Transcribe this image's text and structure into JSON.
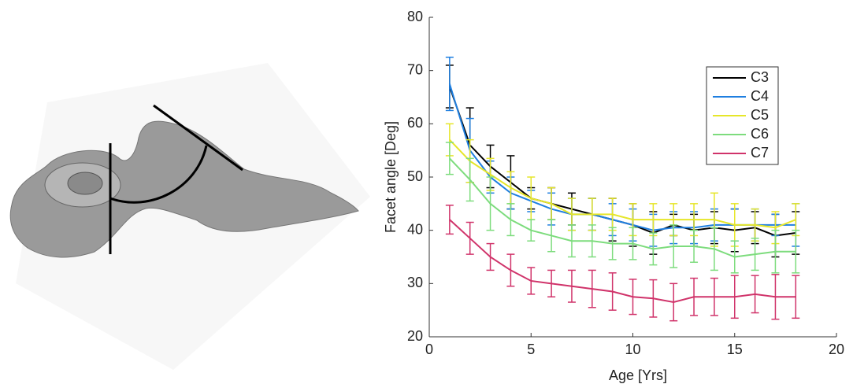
{
  "chart_data": {
    "type": "line",
    "x": [
      1,
      2,
      3,
      4,
      5,
      6,
      7,
      8,
      9,
      10,
      11,
      12,
      13,
      14,
      15,
      16,
      17,
      18
    ],
    "xlabel": "Age [Yrs]",
    "ylabel": "Facet angle [Deg]",
    "xlim": [
      0,
      20
    ],
    "xticks": [
      0,
      5,
      10,
      15,
      20
    ],
    "ylim": [
      20,
      80
    ],
    "yticks": [
      20,
      30,
      40,
      50,
      60,
      70,
      80
    ],
    "legend": "upper right",
    "series": [
      {
        "name": "C3",
        "color": "#000000",
        "values": [
          67,
          56,
          52,
          49,
          46,
          45,
          44,
          43,
          42,
          41,
          39.5,
          41,
          40,
          40.5,
          40,
          40.5,
          39,
          39.5
        ],
        "errors": [
          4,
          7,
          4,
          5,
          2,
          3,
          3,
          3,
          4,
          4,
          4,
          2,
          3,
          3,
          4,
          3,
          4,
          4
        ]
      },
      {
        "name": "C4",
        "color": "#1f7fe0",
        "values": [
          67.5,
          55,
          50,
          47,
          45.5,
          44,
          43,
          43,
          42,
          41,
          40,
          40.5,
          40.5,
          41,
          41,
          41,
          41,
          41
        ],
        "errors": [
          5,
          6,
          3,
          3,
          2,
          3,
          3,
          3,
          3,
          3,
          3,
          3,
          3,
          3,
          3,
          3,
          2,
          4
        ]
      },
      {
        "name": "C5",
        "color": "#e6e62a",
        "values": [
          57,
          53,
          50.5,
          48,
          46,
          45,
          43,
          43,
          43,
          42,
          42,
          42,
          42,
          42,
          41,
          41,
          40.5,
          42
        ],
        "errors": [
          3,
          4,
          3,
          3,
          4,
          3,
          3,
          3,
          3,
          3,
          3,
          3,
          3,
          5,
          4,
          3,
          3,
          3
        ]
      },
      {
        "name": "C6",
        "color": "#7ddc7d",
        "values": [
          53.5,
          49.5,
          45,
          42,
          40,
          39,
          38,
          38,
          37.5,
          37.5,
          36.5,
          37,
          37,
          36.5,
          35,
          35.5,
          36,
          36
        ],
        "errors": [
          3,
          4,
          5,
          3,
          2,
          3,
          3,
          3,
          3,
          3,
          3,
          4,
          3,
          4,
          3,
          3,
          4,
          4
        ]
      },
      {
        "name": "C7",
        "color": "#d0336a",
        "values": [
          42,
          38.5,
          35,
          32.5,
          30.5,
          30,
          29.5,
          29,
          28.5,
          27.5,
          27.2,
          26.5,
          27.5,
          27.5,
          27.5,
          28,
          27.5,
          27.5
        ],
        "errors": [
          2.7,
          3,
          2.5,
          3,
          2.5,
          2.5,
          3,
          3.5,
          3.5,
          3.3,
          3.5,
          3.5,
          3.5,
          3.5,
          4,
          3.5,
          4.2,
          4
        ]
      }
    ]
  }
}
